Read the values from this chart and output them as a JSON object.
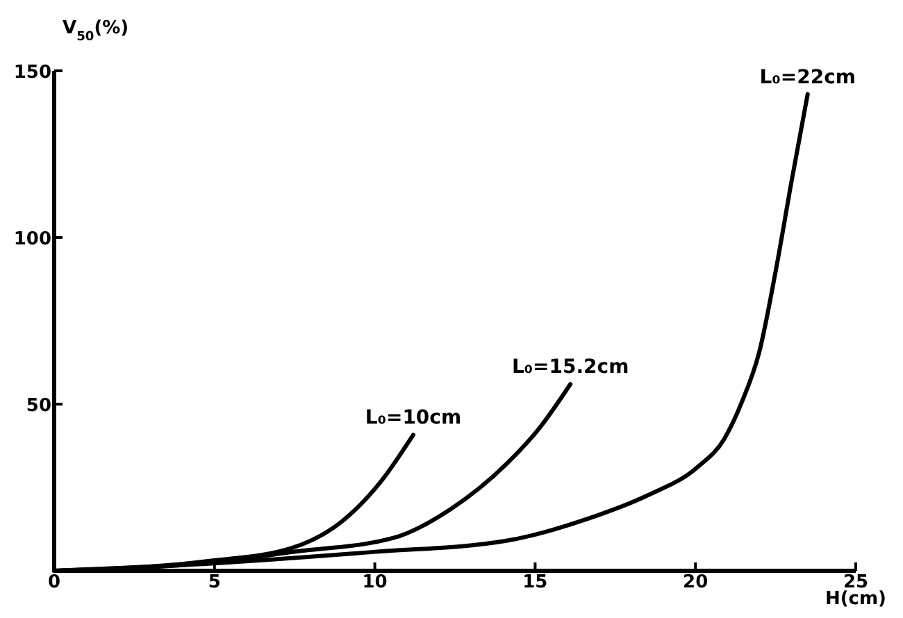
{
  "chart_data": {
    "type": "line",
    "xlabel": "H(cm)",
    "ylabel": "V$_{50}$(%)",
    "xlim": [
      0,
      25
    ],
    "ylim": [
      0,
      150
    ],
    "xticks": [
      0,
      5,
      10,
      15,
      20,
      25
    ],
    "yticks": [
      {
        "value": 0,
        "label": null
      },
      50,
      100,
      150
    ],
    "grid": false,
    "marker": "none",
    "line_style": "solid",
    "series": [
      {
        "name": "L₀=10cm",
        "color": "#000000",
        "x": [
          0,
          4.9,
          7.4,
          9.0,
          10.2,
          11.2
        ],
        "values": [
          0,
          3,
          6.8,
          15,
          26.9,
          40.8
        ]
      },
      {
        "name": "L₀=15.2cm",
        "color": "#000000",
        "x": [
          0,
          4.9,
          7.4,
          10.6,
          12.35,
          14.1,
          15.15,
          16.1
        ],
        "values": [
          0,
          2.5,
          5.6,
          9.9,
          18.4,
          32,
          43,
          56
        ]
      },
      {
        "name": "L₀=22cm",
        "color": "#000000",
        "x": [
          0,
          4.9,
          9.9,
          14.1,
          16.7,
          18.5,
          20.05,
          20.9,
          21.45,
          22,
          22.5,
          23,
          23.5
        ],
        "values": [
          0,
          2.2,
          5.6,
          9,
          15.8,
          22.6,
          31,
          39.6,
          50.7,
          66,
          89.8,
          117,
          143
        ]
      }
    ]
  }
}
